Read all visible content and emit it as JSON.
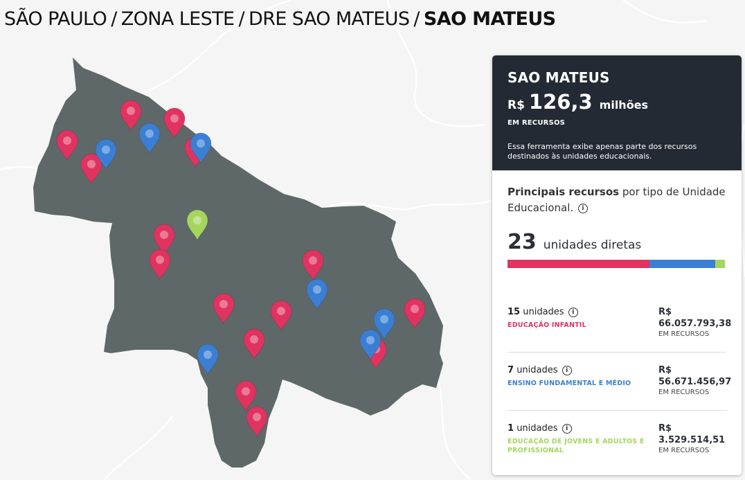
{
  "breadcrumb": {
    "items": [
      "SÃO PAULO",
      "ZONA LESTE",
      "DRE SAO MATEUS"
    ],
    "current": "SAO MATEUS",
    "separator": "/"
  },
  "colors": {
    "map_background": "#f5f5f5",
    "region_fill": "#5f6868",
    "panel_dark": "#242a33",
    "infantil": "#e03360",
    "fundamental": "#3a7fd4",
    "eja": "#a4d65e"
  },
  "map": {
    "markers": [
      {
        "category": "infantil"
      },
      {
        "category": "infantil"
      },
      {
        "category": "infantil"
      },
      {
        "category": "infantil"
      },
      {
        "category": "infantil"
      },
      {
        "category": "infantil"
      },
      {
        "category": "infantil"
      },
      {
        "category": "infantil"
      },
      {
        "category": "infantil"
      },
      {
        "category": "infantil"
      },
      {
        "category": "infantil"
      },
      {
        "category": "infantil"
      },
      {
        "category": "infantil"
      },
      {
        "category": "infantil"
      },
      {
        "category": "infantil"
      },
      {
        "category": "fundamental"
      },
      {
        "category": "fundamental"
      },
      {
        "category": "fundamental"
      },
      {
        "category": "fundamental"
      },
      {
        "category": "fundamental"
      },
      {
        "category": "fundamental"
      },
      {
        "category": "fundamental"
      },
      {
        "category": "eja"
      }
    ]
  },
  "panel": {
    "title": "SAO MATEUS",
    "currency": "R$",
    "amount": "126,3",
    "amount_unit": "milhões",
    "amount_caption": "EM RECURSOS",
    "note": "Essa ferramenta exibe apenas parte dos recursos destinados às unidades educacionais.",
    "intro_bold": "Principais recursos",
    "intro_rest": " por tipo de Unidade Educacional.",
    "info_glyph": "i",
    "units_count": "23",
    "units_label": "unidades diretas",
    "distribution": [
      {
        "category": "infantil",
        "share": 0.6522
      },
      {
        "category": "fundamental",
        "share": 0.3043
      },
      {
        "category": "eja",
        "share": 0.0435
      }
    ],
    "rows": [
      {
        "count": "15",
        "count_label": "unidades",
        "type": "EDUCAÇÃO INFANTIL",
        "color": "#e03360",
        "currency": "R$",
        "value": "66.057.793,38",
        "caption": "EM RECURSOS"
      },
      {
        "count": "7",
        "count_label": "unidades",
        "type": "ENSINO FUNDAMENTAL E MÉDIO",
        "color": "#3a7fd4",
        "currency": "R$",
        "value": "56.671.456,97",
        "caption": "EM RECURSOS"
      },
      {
        "count": "1",
        "count_label": "unidades",
        "type": "EDUCAÇÃO DE JOVENS E ADULTOS E PROFISSIONAL",
        "color": "#a4d65e",
        "currency": "R$",
        "value": "3.529.514,51",
        "caption": "EM RECURSOS"
      }
    ]
  }
}
